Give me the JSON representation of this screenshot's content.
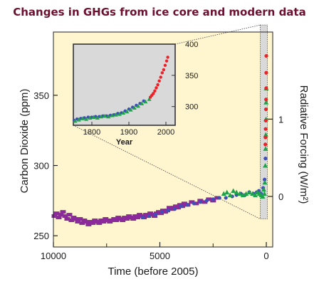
{
  "colors": {
    "title": "#6b1030",
    "plot_background": "#fff6d0",
    "inset_background": "#d9d9d9",
    "series_ice_core_1": "#8b2a9b",
    "series_ice_core_2": "#3f4fb5",
    "series_ice_core_3": "#1fa34a",
    "series_modern": "#e8232a"
  },
  "chart_data": [
    {
      "type": "scatter",
      "title": "Changes in GHGs from ice core and modern data",
      "xlabel": "Time (before 2005)",
      "ylabel": "Carbon Dioxide (ppm)",
      "y2label": "Radiative Forcing (W/m²)",
      "xlim": [
        10000,
        -300
      ],
      "ylim": [
        242,
        395
      ],
      "xticks": [
        "10000",
        "5000",
        "0"
      ],
      "yticks": [
        "250",
        "300",
        "350"
      ],
      "y2ticks": [
        "0",
        "1"
      ],
      "y2_tick_positions_ppm": [
        278,
        333
      ],
      "x_minor_ticks": [
        7500,
        2500
      ],
      "grid": false,
      "series": [
        {
          "color": "#8b2a9b",
          "marker": "bar",
          "x": [
            9950,
            9850,
            9750,
            9650,
            9550,
            9450,
            9350,
            9250,
            9150,
            9050,
            8950,
            8850,
            8750,
            8650,
            8550,
            8450,
            8350,
            8250,
            8150,
            8050,
            7950,
            7850,
            7750,
            7650,
            7550,
            7450,
            7350,
            7250,
            7150,
            7050,
            6950,
            6850,
            6750,
            6650,
            6550,
            6450,
            6350,
            6250,
            6150,
            6050,
            5950,
            5850,
            5750,
            5650,
            5550,
            5450,
            5350,
            5250,
            5150,
            5050,
            4950,
            4850,
            4750,
            4650,
            4550,
            4450,
            4350,
            4250,
            4150,
            4050,
            3950,
            3850,
            3700,
            3500,
            3300,
            3100,
            2900,
            2700,
            2500,
            2300
          ],
          "y": [
            264,
            266,
            263,
            265,
            267,
            264,
            262,
            265,
            261,
            263,
            262,
            260,
            262,
            259,
            261,
            260,
            258,
            260,
            259,
            261,
            260,
            259,
            261,
            260,
            262,
            261,
            260,
            261,
            262,
            261,
            263,
            262,
            261,
            263,
            262,
            264,
            263,
            262,
            264,
            263,
            265,
            264,
            263,
            265,
            264,
            266,
            265,
            264,
            266,
            267,
            266,
            268,
            267,
            268,
            270,
            269,
            270,
            271,
            270,
            272,
            271,
            273,
            272,
            274,
            273,
            275,
            274,
            276,
            275,
            277
          ]
        },
        {
          "color": "#3f4fb5",
          "marker": "dot",
          "x": [
            5800,
            5500,
            5200,
            4900,
            4600,
            4300,
            4000,
            3700,
            3400,
            3100,
            2800,
            2500,
            2200,
            1900,
            1600,
            1400,
            1200,
            1000,
            800,
            600,
            450,
            350,
            250,
            150,
            80,
            40
          ],
          "y": [
            263,
            264,
            265,
            267,
            268,
            269,
            271,
            272,
            273,
            274,
            275,
            276,
            277,
            277,
            278,
            279,
            280,
            279,
            281,
            280,
            281,
            282,
            280,
            284,
            290,
            305
          ]
        },
        {
          "color": "#1fa34a",
          "marker": "triangle",
          "x": [
            2000,
            1850,
            1700,
            1550,
            1400,
            1250,
            1100,
            950,
            800,
            650,
            520,
            420,
            330,
            240,
            170,
            120,
            90,
            70,
            50,
            35,
            25,
            15,
            10,
            5
          ],
          "y": [
            280,
            281,
            279,
            282,
            281,
            280,
            279,
            280,
            281,
            280,
            279,
            281,
            280,
            279,
            278,
            283,
            280,
            288,
            300,
            312,
            322,
            333,
            345,
            355
          ]
        },
        {
          "color": "#e8232a",
          "marker": "dot",
          "x": [
            47,
            40,
            32,
            25,
            18,
            12,
            6,
            3,
            1
          ],
          "y": [
            315,
            320,
            326,
            332,
            340,
            347,
            355,
            366,
            378
          ]
        }
      ]
    },
    {
      "type": "scatter",
      "xlabel": "Year",
      "xlim": [
        1750,
        2025
      ],
      "ylim": [
        270,
        400
      ],
      "xticks": [
        "1800",
        "1900",
        "2000"
      ],
      "yticks": [
        "400",
        "350",
        "300"
      ],
      "series": [
        {
          "color": "#3f4fb5",
          "marker": "dot",
          "x": [
            1752,
            1760,
            1770,
            1780,
            1790,
            1800,
            1810,
            1820,
            1830,
            1840,
            1850,
            1860,
            1870,
            1880,
            1890,
            1900,
            1910,
            1920,
            1930,
            1940
          ],
          "y": [
            278,
            280,
            281,
            282,
            283,
            283,
            284,
            284,
            285,
            285,
            286,
            287,
            289,
            290,
            293,
            296,
            299,
            302,
            305,
            309
          ]
        },
        {
          "color": "#1fa34a",
          "marker": "triangle",
          "x": [
            1755,
            1765,
            1775,
            1785,
            1795,
            1805,
            1815,
            1825,
            1835,
            1845,
            1855,
            1865,
            1875,
            1885,
            1895,
            1905,
            1915,
            1925,
            1935,
            1945,
            1955
          ],
          "y": [
            277,
            279,
            281,
            280,
            282,
            283,
            282,
            284,
            285,
            284,
            286,
            287,
            288,
            290,
            292,
            295,
            298,
            301,
            305,
            308,
            312
          ]
        },
        {
          "color": "#e8232a",
          "marker": "dot",
          "x": [
            1958,
            1962,
            1966,
            1970,
            1974,
            1978,
            1982,
            1986,
            1990,
            1994,
            1998,
            2002,
            2005
          ],
          "y": [
            315,
            318,
            321,
            325,
            330,
            335,
            341,
            347,
            354,
            359,
            366,
            373,
            379
          ]
        }
      ]
    }
  ]
}
